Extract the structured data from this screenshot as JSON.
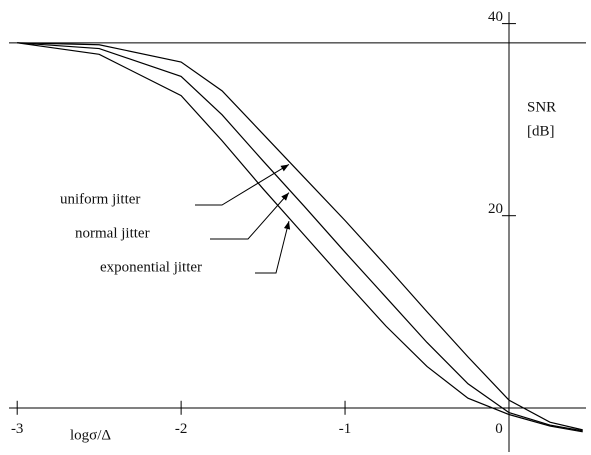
{
  "chart_data": {
    "type": "line",
    "x_label": "logσ/Δ",
    "y_label": [
      "SNR",
      "[dB]"
    ],
    "x": [
      -3,
      -2.5,
      -2,
      -1.75,
      -1.5,
      -1.25,
      -1,
      -0.75,
      -0.5,
      -0.25,
      0,
      0.25,
      0.45
    ],
    "series": [
      {
        "name": "uniform jitter",
        "color": "#000000",
        "values": [
          38,
          37.8,
          36,
          33,
          28.5,
          24,
          19.5,
          14.8,
          10,
          5.3,
          0.8,
          -1.5,
          -2.3
        ]
      },
      {
        "name": "normal jitter",
        "color": "#000000",
        "values": [
          38,
          37.4,
          34.5,
          30.5,
          25.7,
          21,
          16.2,
          11.5,
          6.8,
          2.5,
          -0.5,
          -1.8,
          -2.4
        ]
      },
      {
        "name": "exponential jitter",
        "color": "#000000",
        "values": [
          38,
          36.8,
          32.5,
          27.8,
          22.8,
          18,
          13.2,
          8.5,
          4.3,
          1,
          -0.7,
          -1.9,
          -2.5
        ]
      }
    ],
    "hline": 38,
    "xlim": [
      -3.05,
      0.47
    ],
    "ylim": [
      -4.5,
      41
    ],
    "xticks": [
      -3,
      -2,
      -1,
      0
    ],
    "yticks": [
      20,
      40
    ]
  }
}
